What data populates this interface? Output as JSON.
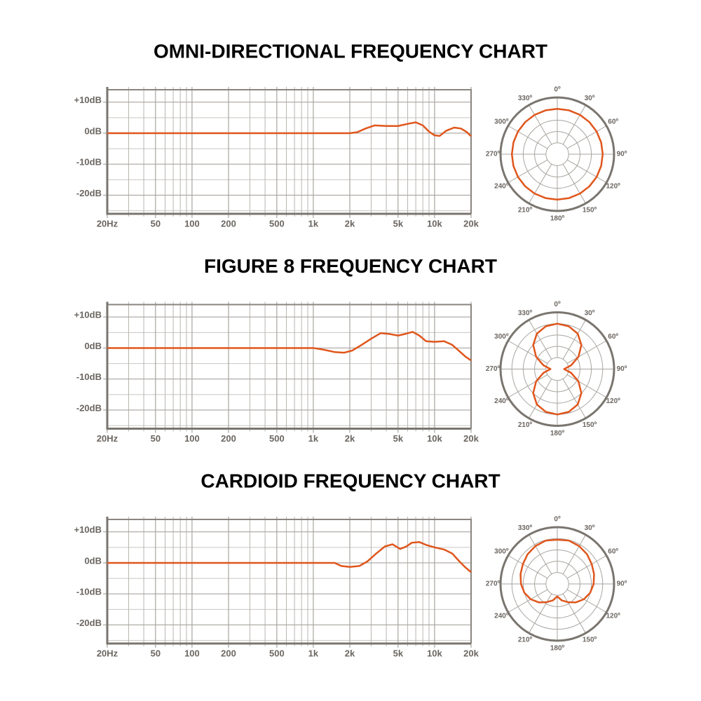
{
  "chart_data": [
    {
      "type": "line",
      "title": "OMNI-DIRECTIONAL FREQUENCY CHART",
      "xscale": "log",
      "color": "#e0561c",
      "xlim": [
        20,
        20000
      ],
      "ylim": [
        -26,
        14
      ],
      "xticks": [
        {
          "value": 20,
          "label": "20Hz"
        },
        50,
        100,
        200,
        500,
        {
          "value": 1000,
          "label": "1k"
        },
        {
          "value": 2000,
          "label": "2k"
        },
        {
          "value": 5000,
          "label": "5k"
        },
        {
          "value": 10000,
          "label": "10k"
        },
        {
          "value": 20000,
          "label": "20k"
        }
      ],
      "minor_xticks": [
        30,
        40,
        60,
        70,
        80,
        90,
        300,
        400,
        600,
        700,
        800,
        900,
        3000,
        4000,
        6000,
        7000,
        8000,
        9000
      ],
      "yticks": [
        {
          "value": 10,
          "label": "+10dB"
        },
        {
          "value": 0,
          "label": "0dB"
        },
        {
          "value": -10,
          "label": "-10dB"
        },
        {
          "value": -20,
          "label": "-20dB"
        }
      ],
      "minor_yticks": [
        5,
        -5,
        -15,
        -25
      ],
      "x": [
        20,
        1000,
        2000,
        2300,
        2700,
        3200,
        4000,
        5000,
        6000,
        7000,
        8000,
        9000,
        10000,
        11000,
        12500,
        14500,
        16500,
        18500,
        20000
      ],
      "values": [
        0,
        0,
        0,
        0.3,
        1.5,
        2.5,
        2.3,
        2.3,
        3,
        3.5,
        2.5,
        0.5,
        -0.7,
        -0.9,
        0.8,
        1.8,
        1.5,
        0.3,
        -1
      ]
    },
    {
      "type": "polar",
      "color": "#e0561c",
      "rlim": [
        0,
        1
      ],
      "rgrid": [
        0.2,
        0.4,
        0.6,
        0.8
      ],
      "thetaticks": [
        {
          "value": 0,
          "label": "0º"
        },
        {
          "value": 30,
          "label": "30º"
        },
        {
          "value": 60,
          "label": "60º"
        },
        {
          "value": 90,
          "label": "90º"
        },
        {
          "value": 120,
          "label": "120º"
        },
        {
          "value": 150,
          "label": "150º"
        },
        {
          "value": 180,
          "label": "180º"
        },
        {
          "value": 210,
          "label": "210º"
        },
        {
          "value": 240,
          "label": "240º"
        },
        {
          "value": 270,
          "label": "270º"
        },
        {
          "value": 300,
          "label": "300º"
        },
        {
          "value": 330,
          "label": "330º"
        }
      ],
      "theta": [
        0,
        15,
        30,
        45,
        60,
        75,
        90,
        105,
        120,
        135,
        150,
        165,
        180,
        195,
        210,
        225,
        240,
        255,
        270,
        285,
        300,
        315,
        330,
        345
      ],
      "values": [
        0.8,
        0.8,
        0.8,
        0.8,
        0.8,
        0.8,
        0.8,
        0.8,
        0.8,
        0.8,
        0.8,
        0.8,
        0.8,
        0.8,
        0.8,
        0.8,
        0.8,
        0.8,
        0.8,
        0.8,
        0.8,
        0.8,
        0.8,
        0.8
      ]
    },
    {
      "type": "line",
      "title": "FIGURE 8 FREQUENCY CHART",
      "xscale": "log",
      "color": "#e0561c",
      "xlim": [
        20,
        20000
      ],
      "ylim": [
        -26,
        14
      ],
      "xticks": [
        {
          "value": 20,
          "label": "20Hz"
        },
        50,
        100,
        200,
        500,
        {
          "value": 1000,
          "label": "1k"
        },
        {
          "value": 2000,
          "label": "2k"
        },
        {
          "value": 5000,
          "label": "5k"
        },
        {
          "value": 10000,
          "label": "10k"
        },
        {
          "value": 20000,
          "label": "20k"
        }
      ],
      "minor_xticks": [
        30,
        40,
        60,
        70,
        80,
        90,
        300,
        400,
        600,
        700,
        800,
        900,
        3000,
        4000,
        6000,
        7000,
        8000,
        9000
      ],
      "yticks": [
        {
          "value": 10,
          "label": "+10dB"
        },
        {
          "value": 0,
          "label": "0dB"
        },
        {
          "value": -10,
          "label": "-10dB"
        },
        {
          "value": -20,
          "label": "-20dB"
        }
      ],
      "minor_yticks": [
        5,
        -5,
        -15,
        -25
      ],
      "x": [
        20,
        1000,
        1200,
        1500,
        1800,
        2100,
        2500,
        3000,
        3600,
        4300,
        5000,
        5800,
        6600,
        7500,
        8500,
        10000,
        12000,
        14000,
        16000,
        18000,
        20000
      ],
      "values": [
        0,
        0,
        -0.5,
        -1.3,
        -1.5,
        -0.8,
        1,
        3,
        4.8,
        4.5,
        4,
        4.6,
        5.2,
        4,
        2.2,
        2,
        2.2,
        1,
        -1,
        -2.8,
        -4
      ]
    },
    {
      "type": "polar",
      "color": "#e0561c",
      "rlim": [
        0,
        1
      ],
      "rgrid": [
        0.2,
        0.4,
        0.6,
        0.8
      ],
      "thetaticks": [
        {
          "value": 0,
          "label": "0º"
        },
        {
          "value": 30,
          "label": "30º"
        },
        {
          "value": 60,
          "label": "60º"
        },
        {
          "value": 90,
          "label": "90º"
        },
        {
          "value": 120,
          "label": "120º"
        },
        {
          "value": 150,
          "label": "150º"
        },
        {
          "value": 180,
          "label": "180º"
        },
        {
          "value": 210,
          "label": "210º"
        },
        {
          "value": 240,
          "label": "240º"
        },
        {
          "value": 270,
          "label": "270º"
        },
        {
          "value": 300,
          "label": "300º"
        },
        {
          "value": 330,
          "label": "330º"
        }
      ],
      "theta": [
        0,
        15,
        30,
        45,
        60,
        75,
        90,
        105,
        120,
        135,
        150,
        165,
        180,
        195,
        210,
        225,
        240,
        255,
        270,
        285,
        300,
        315,
        330,
        345
      ],
      "values": [
        0.8,
        0.78,
        0.72,
        0.6,
        0.43,
        0.25,
        0.12,
        0.25,
        0.43,
        0.6,
        0.72,
        0.78,
        0.8,
        0.78,
        0.72,
        0.6,
        0.43,
        0.25,
        0.12,
        0.25,
        0.43,
        0.6,
        0.72,
        0.78
      ]
    },
    {
      "type": "line",
      "title": "CARDIOID FREQUENCY CHART",
      "xscale": "log",
      "color": "#e0561c",
      "xlim": [
        20,
        20000
      ],
      "ylim": [
        -26,
        14
      ],
      "xticks": [
        {
          "value": 20,
          "label": "20Hz"
        },
        50,
        100,
        200,
        500,
        {
          "value": 1000,
          "label": "1k"
        },
        {
          "value": 2000,
          "label": "2k"
        },
        {
          "value": 5000,
          "label": "5k"
        },
        {
          "value": 10000,
          "label": "10k"
        },
        {
          "value": 20000,
          "label": "20k"
        }
      ],
      "minor_xticks": [
        30,
        40,
        60,
        70,
        80,
        90,
        300,
        400,
        600,
        700,
        800,
        900,
        3000,
        4000,
        6000,
        7000,
        8000,
        9000
      ],
      "yticks": [
        {
          "value": 10,
          "label": "+10dB"
        },
        {
          "value": 0,
          "label": "0dB"
        },
        {
          "value": -10,
          "label": "-10dB"
        },
        {
          "value": -20,
          "label": "-20dB"
        }
      ],
      "minor_yticks": [
        5,
        -5,
        -15,
        -25
      ],
      "x": [
        20,
        1500,
        1700,
        2000,
        2400,
        2800,
        3300,
        3900,
        4500,
        5200,
        5800,
        6500,
        7500,
        8500,
        10000,
        12000,
        14000,
        16000,
        18000,
        20000
      ],
      "values": [
        0,
        0,
        -1,
        -1.3,
        -1,
        0.5,
        3,
        5.3,
        6,
        4.5,
        5.2,
        6.5,
        6.7,
        5.8,
        5,
        4.3,
        3,
        0.5,
        -1.5,
        -3
      ]
    },
    {
      "type": "polar",
      "color": "#e0561c",
      "rlim": [
        0,
        1
      ],
      "rgrid": [
        0.2,
        0.4,
        0.6,
        0.8
      ],
      "thetaticks": [
        {
          "value": 0,
          "label": "0º"
        },
        {
          "value": 30,
          "label": "30º"
        },
        {
          "value": 60,
          "label": "60º"
        },
        {
          "value": 90,
          "label": "90º"
        },
        {
          "value": 120,
          "label": "120º"
        },
        {
          "value": 150,
          "label": "150º"
        },
        {
          "value": 180,
          "label": "180º"
        },
        {
          "value": 210,
          "label": "210º"
        },
        {
          "value": 240,
          "label": "240º"
        },
        {
          "value": 270,
          "label": "270º"
        },
        {
          "value": 300,
          "label": "300º"
        },
        {
          "value": 330,
          "label": "330º"
        }
      ],
      "theta": [
        0,
        15,
        30,
        45,
        60,
        75,
        90,
        105,
        120,
        135,
        150,
        165,
        180,
        195,
        210,
        225,
        240,
        255,
        270,
        285,
        300,
        315,
        330,
        345
      ],
      "values": [
        0.78,
        0.79,
        0.77,
        0.74,
        0.7,
        0.67,
        0.64,
        0.6,
        0.54,
        0.46,
        0.37,
        0.3,
        0.22,
        0.3,
        0.37,
        0.46,
        0.54,
        0.6,
        0.64,
        0.67,
        0.7,
        0.74,
        0.77,
        0.79
      ]
    }
  ]
}
